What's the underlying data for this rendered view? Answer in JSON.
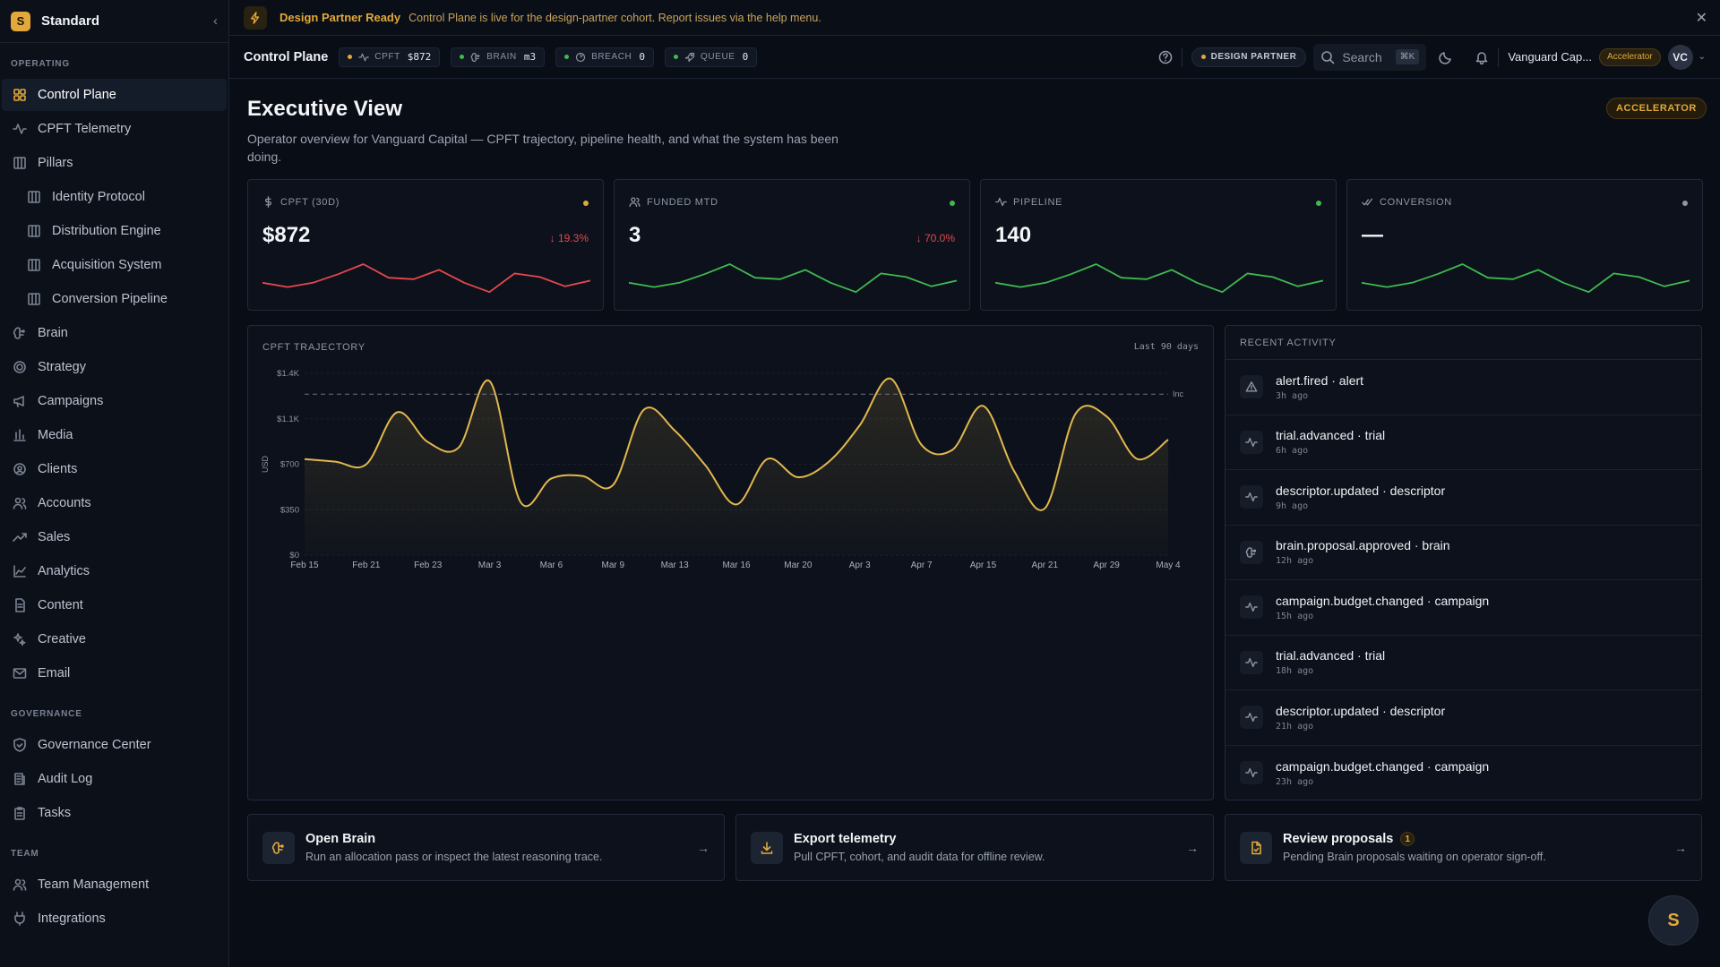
{
  "sidebar": {
    "workspace": "Standard",
    "logo_letter": "S",
    "sections": {
      "operating": "OPERATING",
      "governance": "GOVERNANCE",
      "team": "TEAM"
    },
    "items": {
      "control_plane": "Control Plane",
      "cpft_telemetry": "CPFT Telemetry",
      "pillars": "Pillars",
      "identity_protocol": "Identity Protocol",
      "distribution_engine": "Distribution Engine",
      "acquisition_system": "Acquisition System",
      "conversion_pipeline": "Conversion Pipeline",
      "brain": "Brain",
      "strategy": "Strategy",
      "campaigns": "Campaigns",
      "media": "Media",
      "clients": "Clients",
      "accounts": "Accounts",
      "sales": "Sales",
      "analytics": "Analytics",
      "content": "Content",
      "creative": "Creative",
      "email": "Email",
      "governance_center": "Governance Center",
      "audit_log": "Audit Log",
      "tasks": "Tasks",
      "team_management": "Team Management",
      "integrations": "Integrations"
    }
  },
  "banner": {
    "title": "Design Partner Ready",
    "text": "Control Plane is live for the design-partner cohort. Report issues via the help menu."
  },
  "topbar": {
    "title": "Control Plane",
    "chips": {
      "cpft": {
        "label": "CPFT",
        "value": "$872",
        "dot": "#e2a93a"
      },
      "brain": {
        "label": "BRAIN",
        "value": "m3",
        "dot": "#3fb950"
      },
      "breach": {
        "label": "BREACH",
        "value": "0",
        "dot": "#3fb950"
      },
      "queue": {
        "label": "QUEUE",
        "value": "0",
        "dot": "#3fb950"
      }
    },
    "partner_badge": "DESIGN PARTNER",
    "search_placeholder": "Search",
    "search_shortcut": "⌘K",
    "org_name": "Vanguard Cap...",
    "tier": "Accelerator",
    "avatar": "VC"
  },
  "main": {
    "title": "Executive View",
    "subtitle": "Operator overview for Vanguard Capital — CPFT trajectory, pipeline health, and what the system has been doing.",
    "tier_badge": "ACCELERATOR"
  },
  "kpis": [
    {
      "label": "CPFT (30D)",
      "value": "$872",
      "delta": "↓ 19.3%",
      "status": "#e2a93a",
      "trend": "#e5484d",
      "spark": [
        24,
        18,
        24,
        36,
        50,
        31,
        29,
        42,
        24,
        11,
        37,
        32,
        19,
        27
      ]
    },
    {
      "label": "FUNDED MTD",
      "value": "3",
      "delta": "↓ 70.0%",
      "status": "#3fb950",
      "trend": "#3fb950",
      "spark": [
        24,
        18,
        24,
        36,
        50,
        31,
        29,
        42,
        24,
        11,
        37,
        32,
        19,
        27
      ]
    },
    {
      "label": "PIPELINE",
      "value": "140",
      "delta": "",
      "status": "#3fb950",
      "trend": "#3fb950",
      "spark": [
        24,
        18,
        24,
        36,
        50,
        31,
        29,
        42,
        24,
        11,
        37,
        32,
        19,
        27
      ]
    },
    {
      "label": "CONVERSION",
      "value": "—",
      "delta": "",
      "status": "#8e97a6",
      "trend": "#3fb950",
      "spark": [
        24,
        18,
        24,
        36,
        50,
        31,
        29,
        42,
        24,
        11,
        37,
        32,
        19,
        27
      ]
    }
  ],
  "chart_data": {
    "type": "area",
    "title": "CPFT TRAJECTORY",
    "range_label": "Last 90 days",
    "ylabel": "USD",
    "ylim": [
      0,
      1400
    ],
    "yticks": [
      "$0",
      "$350",
      "$700",
      "$1.1K",
      "$1.4K"
    ],
    "ytick_values": [
      0,
      350,
      700,
      1050,
      1400
    ],
    "threshold": 1240,
    "threshold_label": "Inc",
    "xlabels": [
      "Feb 15",
      "Feb 21",
      "Feb 23",
      "Mar 3",
      "Mar 6",
      "Mar 9",
      "Mar 13",
      "Mar 16",
      "Mar 20",
      "Apr 3",
      "Apr 7",
      "Apr 15",
      "Apr 21",
      "Apr 29",
      "May 4"
    ],
    "values": [
      740,
      720,
      700,
      1100,
      870,
      830,
      1340,
      410,
      590,
      610,
      540,
      1120,
      960,
      690,
      390,
      740,
      600,
      720,
      1000,
      1360,
      850,
      810,
      1150,
      650,
      360,
      1090,
      1070,
      740,
      890
    ],
    "color": "#e2b84d"
  },
  "activity": {
    "title": "RECENT ACTIVITY",
    "items": [
      {
        "name": "alert.fired · alert",
        "time": "3h ago",
        "icon": "alert-icon"
      },
      {
        "name": "trial.advanced · trial",
        "time": "6h ago",
        "icon": "pulse-icon"
      },
      {
        "name": "descriptor.updated · descriptor",
        "time": "9h ago",
        "icon": "pulse-icon"
      },
      {
        "name": "brain.proposal.approved · brain",
        "time": "12h ago",
        "icon": "brain-icon"
      },
      {
        "name": "campaign.budget.changed · campaign",
        "time": "15h ago",
        "icon": "pulse-icon"
      },
      {
        "name": "trial.advanced · trial",
        "time": "18h ago",
        "icon": "pulse-icon"
      },
      {
        "name": "descriptor.updated · descriptor",
        "time": "21h ago",
        "icon": "pulse-icon"
      },
      {
        "name": "campaign.budget.changed · campaign",
        "time": "23h ago",
        "icon": "pulse-icon"
      }
    ]
  },
  "actions": [
    {
      "title": "Open Brain",
      "desc": "Run an allocation pass or inspect the latest reasoning trace."
    },
    {
      "title": "Export telemetry",
      "desc": "Pull CPFT, cohort, and audit data for offline review."
    },
    {
      "title": "Review proposals",
      "desc": "Pending Brain proposals waiting on operator sign-off.",
      "count": "1"
    }
  ],
  "fab_letter": "S"
}
